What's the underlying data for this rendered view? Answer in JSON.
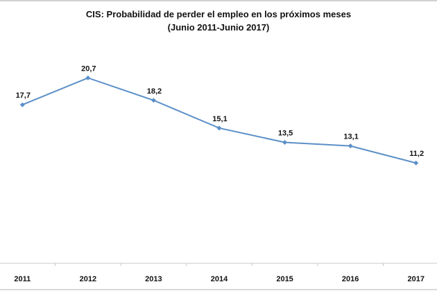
{
  "chart_data": {
    "type": "line",
    "title": "CIS: Probabilidad de perder el empleo en los próximos meses",
    "subtitle": "(Junio 2011-Junio 2017)",
    "xlabel": "",
    "ylabel": "",
    "categories": [
      "2011",
      "2012",
      "2013",
      "2014",
      "2015",
      "2016",
      "2017"
    ],
    "series": [
      {
        "name": "Probabilidad de perder el empleo",
        "values": [
          17.7,
          20.7,
          18.2,
          15.1,
          13.5,
          13.1,
          11.2
        ],
        "labels": [
          "17,7",
          "20,7",
          "18,2",
          "15,1",
          "13,5",
          "13,1",
          "11,2"
        ],
        "color": "#5b8fc7",
        "marker": "diamond"
      }
    ],
    "ylim": [
      0,
      29.4
    ],
    "grid": false,
    "legend": "none"
  }
}
